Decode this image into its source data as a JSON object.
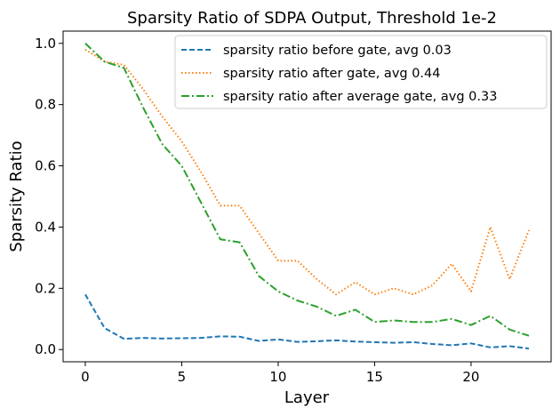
{
  "chart_data": {
    "type": "line",
    "title": "Sparsity Ratio of SDPA Output, Threshold 1e-2",
    "xlabel": "Layer",
    "ylabel": "Sparsity Ratio",
    "xlim": [
      -1.15,
      24.15
    ],
    "ylim": [
      -0.04,
      1.04
    ],
    "xticks": [
      0,
      5,
      10,
      15,
      20
    ],
    "xtick_labels": [
      "0",
      "5",
      "10",
      "15",
      "20"
    ],
    "yticks": [
      0.0,
      0.2,
      0.4,
      0.6,
      0.8,
      1.0
    ],
    "ytick_labels": [
      "0.0",
      "0.2",
      "0.4",
      "0.6",
      "0.8",
      "1.0"
    ],
    "grid": false,
    "legend_position": "top-right",
    "x": [
      0,
      1,
      2,
      3,
      4,
      5,
      6,
      7,
      8,
      9,
      10,
      11,
      12,
      13,
      14,
      15,
      16,
      17,
      18,
      19,
      20,
      21,
      22,
      23
    ],
    "series": [
      {
        "name": "sparsity ratio before gate, avg 0.03",
        "color": "#1f77b4",
        "style": "dashed",
        "values": [
          0.18,
          0.07,
          0.035,
          0.038,
          0.036,
          0.037,
          0.038,
          0.043,
          0.042,
          0.028,
          0.033,
          0.025,
          0.027,
          0.03,
          0.026,
          0.024,
          0.022,
          0.024,
          0.018,
          0.014,
          0.02,
          0.007,
          0.011,
          0.003
        ]
      },
      {
        "name": "sparsity ratio after gate, avg 0.44",
        "color": "#ff7f0e",
        "style": "dotted",
        "values": [
          0.98,
          0.94,
          0.93,
          0.85,
          0.76,
          0.68,
          0.58,
          0.47,
          0.47,
          0.38,
          0.29,
          0.29,
          0.23,
          0.18,
          0.22,
          0.18,
          0.2,
          0.18,
          0.21,
          0.28,
          0.19,
          0.4,
          0.23,
          0.39
        ]
      },
      {
        "name": "sparsity ratio after average gate, avg 0.33",
        "color": "#2ca02c",
        "style": "dashdot",
        "values": [
          1.0,
          0.94,
          0.92,
          0.79,
          0.67,
          0.6,
          0.48,
          0.36,
          0.35,
          0.24,
          0.19,
          0.16,
          0.14,
          0.11,
          0.13,
          0.09,
          0.095,
          0.09,
          0.09,
          0.1,
          0.08,
          0.11,
          0.065,
          0.045
        ]
      }
    ]
  }
}
